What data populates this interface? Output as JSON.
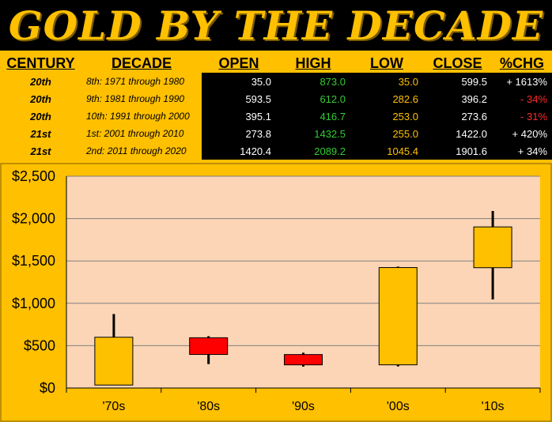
{
  "title": "GOLD BY THE DECADE",
  "table": {
    "headers": [
      "CENTURY",
      "DECADE",
      "OPEN",
      "HIGH",
      "LOW",
      "CLOSE",
      "%CHG"
    ],
    "rows": [
      {
        "century": "20th",
        "decade": "8th:  1971 through 1980",
        "open": "35.0",
        "high": "873.0",
        "low": "35.0",
        "close": "599.5",
        "chg": "+ 1613%",
        "chg_sign": "pos"
      },
      {
        "century": "20th",
        "decade": "9th:  1981 through 1990",
        "open": "593.5",
        "high": "612.0",
        "low": "282.6",
        "close": "396.2",
        "chg": "- 34%",
        "chg_sign": "neg"
      },
      {
        "century": "20th",
        "decade": "10th:  1991 through 2000",
        "open": "395.1",
        "high": "416.7",
        "low": "253.0",
        "close": "273.6",
        "chg": "- 31%",
        "chg_sign": "neg"
      },
      {
        "century": "21st",
        "decade": "1st:  2001 through 2010",
        "open": "273.8",
        "high": "1432.5",
        "low": "255.0",
        "close": "1422.0",
        "chg": "+ 420%",
        "chg_sign": "pos"
      },
      {
        "century": "21st",
        "decade": "2nd:  2011 through 2020",
        "open": "1420.4",
        "high": "2089.2",
        "low": "1045.4",
        "close": "1901.6",
        "chg": "+ 34%",
        "chg_sign": "pos"
      }
    ]
  },
  "chart_data": {
    "type": "candlestick",
    "categories": [
      "'70s",
      "'80s",
      "'90s",
      "'00s",
      "'10s"
    ],
    "open": [
      35.0,
      593.5,
      395.1,
      273.8,
      1420.4
    ],
    "high": [
      873.0,
      612.0,
      416.7,
      1432.5,
      2089.2
    ],
    "low": [
      35.0,
      282.6,
      253.0,
      255.0,
      1045.4
    ],
    "close": [
      599.5,
      396.2,
      273.6,
      1422.0,
      1901.6
    ],
    "ylim": [
      0,
      2500
    ],
    "yticks": [
      0,
      500,
      1000,
      1500,
      2000,
      2500
    ],
    "ytick_labels": [
      "$0",
      "$500",
      "$1,000",
      "$1,500",
      "$2,000",
      "$2,500"
    ],
    "grid": true,
    "colors": {
      "up": "#FFC000",
      "down": "#FF0000",
      "plot_bg": "#FBD5B5",
      "wick": "#000000",
      "grid": "#808080"
    }
  }
}
